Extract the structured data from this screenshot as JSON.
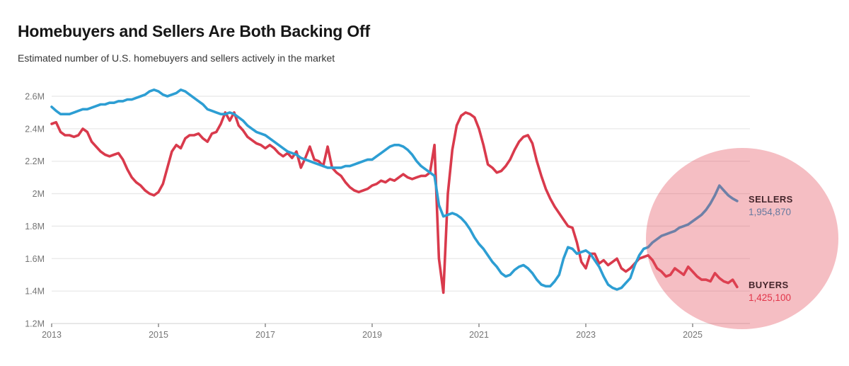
{
  "header": {
    "title": "Homebuyers and Sellers Are Both Backing Off",
    "subtitle": "Estimated number of U.S. homebuyers and sellers actively in the market"
  },
  "chart_data": {
    "type": "line",
    "title": "Homebuyers and Sellers Are Both Backing Off",
    "subtitle": "Estimated number of U.S. homebuyers and sellers actively in the market",
    "frequency": "monthly",
    "x_start": "2013-01",
    "x_end": "2025-11",
    "x_tick_years": [
      2013,
      2015,
      2017,
      2019,
      2021,
      2023,
      2025
    ],
    "y_tick_labels": [
      "2.6M",
      "2.4M",
      "2.2M",
      "2M",
      "1.8M",
      "1.6M",
      "1.4M",
      "1.2M"
    ],
    "ylim": [
      1200000,
      2600000
    ],
    "unit": "people (millions)",
    "grid": true,
    "legend_position": "end-of-line-labels",
    "series": [
      {
        "name": "Buyers",
        "color": "#d93a4c",
        "end_label": "BUYERS",
        "end_value_label": "1,425,100",
        "end_value": 1425100,
        "values_millions": [
          2.43,
          2.44,
          2.38,
          2.36,
          2.36,
          2.35,
          2.36,
          2.4,
          2.38,
          2.32,
          2.29,
          2.26,
          2.24,
          2.23,
          2.24,
          2.25,
          2.21,
          2.15,
          2.1,
          2.07,
          2.05,
          2.02,
          2.0,
          1.99,
          2.01,
          2.06,
          2.16,
          2.26,
          2.3,
          2.28,
          2.34,
          2.36,
          2.36,
          2.37,
          2.34,
          2.32,
          2.37,
          2.38,
          2.43,
          2.5,
          2.45,
          2.5,
          2.42,
          2.39,
          2.35,
          2.33,
          2.31,
          2.3,
          2.28,
          2.3,
          2.28,
          2.25,
          2.23,
          2.25,
          2.22,
          2.26,
          2.16,
          2.22,
          2.29,
          2.21,
          2.2,
          2.17,
          2.29,
          2.16,
          2.13,
          2.11,
          2.07,
          2.04,
          2.02,
          2.01,
          2.02,
          2.03,
          2.05,
          2.06,
          2.08,
          2.07,
          2.09,
          2.08,
          2.1,
          2.12,
          2.1,
          2.09,
          2.1,
          2.11,
          2.11,
          2.13,
          2.3,
          1.6,
          1.39,
          2.0,
          2.27,
          2.42,
          2.48,
          2.5,
          2.49,
          2.47,
          2.4,
          2.3,
          2.18,
          2.16,
          2.13,
          2.14,
          2.17,
          2.21,
          2.27,
          2.32,
          2.35,
          2.36,
          2.31,
          2.2,
          2.11,
          2.03,
          1.97,
          1.92,
          1.88,
          1.84,
          1.8,
          1.79,
          1.7,
          1.58,
          1.54,
          1.63,
          1.63,
          1.57,
          1.59,
          1.56,
          1.58,
          1.6,
          1.54,
          1.52,
          1.54,
          1.57,
          1.6,
          1.61,
          1.62,
          1.59,
          1.54,
          1.52,
          1.49,
          1.5,
          1.54,
          1.52,
          1.5,
          1.55,
          1.52,
          1.49,
          1.47,
          1.47,
          1.46,
          1.51,
          1.48,
          1.46,
          1.45,
          1.47,
          1.4251
        ]
      },
      {
        "name": "Sellers",
        "color": "#2d9ed3",
        "end_label": "SELLERS",
        "end_value_label": "1,954,870",
        "end_value": 1954870,
        "values_millions": [
          2.535,
          2.51,
          2.49,
          2.49,
          2.49,
          2.5,
          2.51,
          2.52,
          2.52,
          2.53,
          2.54,
          2.55,
          2.55,
          2.56,
          2.56,
          2.57,
          2.57,
          2.58,
          2.58,
          2.59,
          2.6,
          2.61,
          2.63,
          2.64,
          2.63,
          2.61,
          2.6,
          2.61,
          2.62,
          2.64,
          2.63,
          2.61,
          2.59,
          2.57,
          2.55,
          2.52,
          2.51,
          2.5,
          2.49,
          2.49,
          2.5,
          2.49,
          2.47,
          2.45,
          2.42,
          2.4,
          2.38,
          2.37,
          2.36,
          2.34,
          2.32,
          2.3,
          2.28,
          2.26,
          2.25,
          2.24,
          2.22,
          2.21,
          2.2,
          2.19,
          2.18,
          2.17,
          2.16,
          2.16,
          2.16,
          2.16,
          2.17,
          2.17,
          2.18,
          2.19,
          2.2,
          2.21,
          2.21,
          2.23,
          2.25,
          2.27,
          2.29,
          2.3,
          2.3,
          2.29,
          2.27,
          2.24,
          2.2,
          2.17,
          2.15,
          2.13,
          2.11,
          1.93,
          1.86,
          1.87,
          1.88,
          1.87,
          1.85,
          1.82,
          1.78,
          1.73,
          1.69,
          1.66,
          1.62,
          1.58,
          1.55,
          1.51,
          1.49,
          1.5,
          1.53,
          1.55,
          1.56,
          1.54,
          1.51,
          1.47,
          1.44,
          1.43,
          1.43,
          1.46,
          1.5,
          1.6,
          1.67,
          1.66,
          1.63,
          1.64,
          1.65,
          1.63,
          1.59,
          1.55,
          1.49,
          1.44,
          1.42,
          1.41,
          1.42,
          1.45,
          1.48,
          1.56,
          1.62,
          1.66,
          1.67,
          1.7,
          1.72,
          1.74,
          1.75,
          1.76,
          1.77,
          1.79,
          1.8,
          1.81,
          1.83,
          1.85,
          1.87,
          1.9,
          1.94,
          1.99,
          2.05,
          2.02,
          1.99,
          1.97,
          1.9549
        ]
      }
    ],
    "annotations": {
      "sellers_label": "SELLERS",
      "sellers_value": "1,954,870",
      "buyers_label": "BUYERS",
      "buyers_value": "1,425,100"
    }
  },
  "colors": {
    "sellers_line": "#2d9ed3",
    "buyers_line": "#d93a4c",
    "highlight_circle_fill": "rgba(226,74,88,0.36)",
    "annotation_label_text": "#45262c",
    "sellers_value_text": "#66799f",
    "buyers_value_text": "#e23449",
    "gridline": "#e8e8e8",
    "axis_line": "#d9d9d9",
    "tick_mark": "#8a8a8a",
    "axis_label_text": "#757575",
    "title_text": "#161616",
    "subtitle_text": "#353535",
    "background": "#ffffff"
  }
}
